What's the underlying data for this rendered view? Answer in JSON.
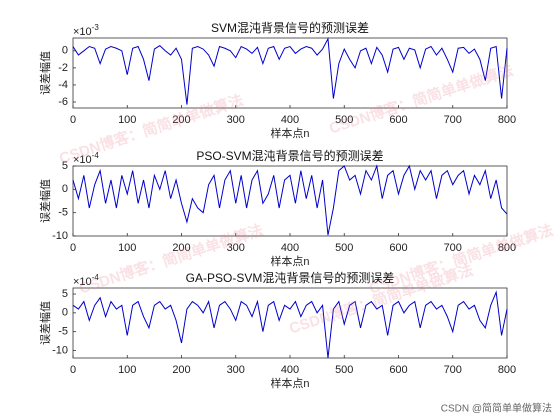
{
  "chart_data": [
    {
      "type": "line",
      "title": "SVM混沌背景信号的预测误差",
      "xlabel": "样本点n",
      "ylabel": "误差幅值",
      "y_exponent": {
        "base": "×10",
        "power": "-3"
      },
      "color": "#0000cc",
      "x": [
        0,
        10,
        20,
        30,
        40,
        50,
        60,
        70,
        80,
        90,
        100,
        110,
        120,
        130,
        140,
        150,
        160,
        170,
        180,
        190,
        200,
        210,
        220,
        230,
        240,
        250,
        260,
        270,
        280,
        290,
        300,
        310,
        320,
        330,
        340,
        350,
        360,
        370,
        380,
        390,
        400,
        410,
        420,
        430,
        440,
        450,
        460,
        470,
        480,
        490,
        500,
        510,
        520,
        530,
        540,
        550,
        560,
        570,
        580,
        590,
        600,
        610,
        620,
        630,
        640,
        650,
        660,
        670,
        680,
        690,
        700,
        710,
        720,
        730,
        740,
        750,
        760,
        770,
        780,
        790,
        800
      ],
      "values": [
        0.5,
        -0.5,
        0,
        0.5,
        0.3,
        -1.5,
        0.2,
        0.5,
        0.3,
        0,
        -2.8,
        0.3,
        0.5,
        -1,
        -3.5,
        0.2,
        0.6,
        0,
        -0.5,
        0.3,
        -1,
        -6.3,
        0.3,
        0.5,
        0.2,
        -0.5,
        -1.8,
        0.5,
        0.3,
        0,
        -0.8,
        0.5,
        0.2,
        -0.3,
        0.4,
        -1.5,
        0.3,
        0.5,
        -1,
        0.3,
        0.5,
        -0.3,
        0.2,
        0.5,
        0.3,
        -0.5,
        0.2,
        1.4,
        -5.6,
        -1.5,
        0.2,
        -1,
        -2,
        0,
        0.3,
        -1.5,
        0.4,
        -0.5,
        -2.5,
        0.2,
        0.4,
        -1,
        0.3,
        0.1,
        -2,
        0.2,
        0.5,
        -0.5,
        0.3,
        -1,
        -2.5,
        0.3,
        0.4,
        -0.3,
        0.2,
        -1,
        -3.5,
        0.3,
        0.5,
        -5.6,
        0.3
      ],
      "xlim": [
        0,
        800
      ],
      "xticks": [
        0,
        100,
        200,
        300,
        400,
        500,
        600,
        700,
        800
      ],
      "ylim": [
        -6.7,
        1.5
      ],
      "yticks": [
        -6,
        -4,
        -2,
        0
      ]
    },
    {
      "type": "line",
      "title": "PSO-SVM混沌背景信号的预测误差",
      "xlabel": "样本点n",
      "ylabel": "误差幅值",
      "y_exponent": {
        "base": "×10",
        "power": "-4"
      },
      "color": "#0000cc",
      "x": [
        0,
        10,
        20,
        30,
        40,
        50,
        60,
        70,
        80,
        90,
        100,
        110,
        120,
        130,
        140,
        150,
        160,
        170,
        180,
        190,
        200,
        210,
        220,
        230,
        240,
        250,
        260,
        270,
        280,
        290,
        300,
        310,
        320,
        330,
        340,
        350,
        360,
        370,
        380,
        390,
        400,
        410,
        420,
        430,
        440,
        450,
        460,
        470,
        480,
        490,
        500,
        510,
        520,
        530,
        540,
        550,
        560,
        570,
        580,
        590,
        600,
        610,
        620,
        630,
        640,
        650,
        660,
        670,
        680,
        690,
        700,
        710,
        720,
        730,
        740,
        750,
        760,
        770,
        780,
        790,
        800
      ],
      "values": [
        2,
        -2,
        3,
        -4,
        1,
        4,
        -3,
        2,
        -4,
        3,
        -1,
        4,
        -3,
        2,
        -4,
        3,
        0,
        4,
        -2,
        2,
        -3,
        -7,
        -2,
        -4,
        -5,
        1,
        3,
        -4,
        2,
        4,
        -3,
        3,
        -4,
        2,
        4,
        -3,
        -1,
        3,
        -4,
        2,
        3,
        -3,
        4,
        -2,
        3,
        -4,
        2,
        -9.8,
        -4,
        4,
        5,
        2,
        3,
        -1,
        4,
        2,
        5,
        -2,
        3,
        4,
        -1,
        3,
        5,
        0,
        4,
        2,
        4,
        -2,
        3,
        4,
        1,
        3,
        4,
        -1,
        3,
        1,
        4,
        -2,
        2,
        -4,
        -5.3
      ],
      "xlim": [
        0,
        800
      ],
      "xticks": [
        0,
        100,
        200,
        300,
        400,
        500,
        600,
        700,
        800
      ],
      "ylim": [
        -10,
        5
      ],
      "yticks": [
        -10,
        -5,
        0,
        5
      ]
    },
    {
      "type": "line",
      "title": "GA-PSO-SVM混沌背景信号的预测误差",
      "xlabel": "样本点n",
      "ylabel": "误差幅值",
      "y_exponent": {
        "base": "×10",
        "power": "-4"
      },
      "color": "#0000cc",
      "x": [
        0,
        10,
        20,
        30,
        40,
        50,
        60,
        70,
        80,
        90,
        100,
        110,
        120,
        130,
        140,
        150,
        160,
        170,
        180,
        190,
        200,
        210,
        220,
        230,
        240,
        250,
        260,
        270,
        280,
        290,
        300,
        310,
        320,
        330,
        340,
        350,
        360,
        370,
        380,
        390,
        400,
        410,
        420,
        430,
        440,
        450,
        460,
        470,
        480,
        490,
        500,
        510,
        520,
        530,
        540,
        550,
        560,
        570,
        580,
        590,
        600,
        610,
        620,
        630,
        640,
        650,
        660,
        670,
        680,
        690,
        700,
        710,
        720,
        730,
        740,
        750,
        760,
        770,
        780,
        790,
        800
      ],
      "values": [
        2,
        1,
        3,
        -2,
        2,
        4,
        -1,
        3,
        1,
        2,
        -6,
        2,
        3,
        -1,
        -4,
        2,
        3,
        1,
        2,
        -2,
        -8,
        1,
        3,
        2,
        0,
        3,
        -4,
        2,
        3,
        1,
        -2,
        3,
        2,
        -1,
        3,
        -5,
        2,
        3,
        -2,
        2,
        1,
        3,
        -1,
        2,
        3,
        0,
        2,
        -12,
        1,
        3,
        -3,
        2,
        3,
        -4,
        2,
        3,
        1,
        2,
        -6,
        2,
        3,
        0,
        2,
        3,
        -4,
        2,
        3,
        1,
        2,
        -1,
        -5,
        2,
        3,
        1,
        2,
        -2,
        -4,
        2,
        5.5,
        -6,
        1
      ],
      "xlim": [
        0,
        800
      ],
      "xticks": [
        0,
        100,
        200,
        300,
        400,
        500,
        600,
        700,
        800
      ],
      "ylim": [
        -12,
        6.6
      ],
      "yticks": [
        -10,
        -5,
        0,
        5
      ]
    }
  ],
  "watermark": "CSDN博客：简简单单做算法",
  "footer": "CSDN @简简单单做算法"
}
